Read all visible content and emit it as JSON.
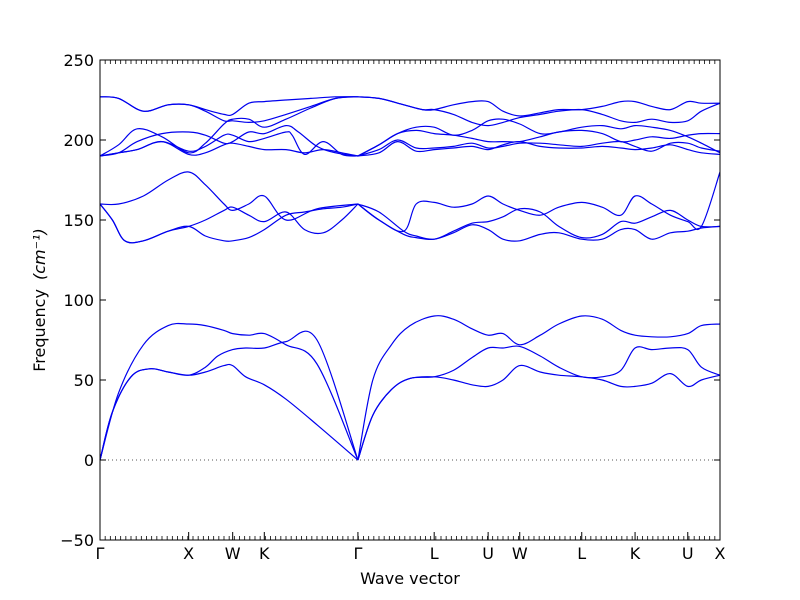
{
  "chart_data": {
    "type": "line",
    "title": "",
    "xlabel": "Wave vector",
    "ylabel": "Frequency",
    "ylabel_unit": "(cm⁻¹)",
    "ylim": [
      -50,
      250
    ],
    "yticks": [
      -50,
      0,
      50,
      100,
      150,
      200,
      250
    ],
    "xlim": [
      0,
      1
    ],
    "high_symmetry_points": [
      {
        "label": "Γ",
        "x": 0.0
      },
      {
        "label": "X",
        "x": 0.143
      },
      {
        "label": "W",
        "x": 0.214
      },
      {
        "label": "K",
        "x": 0.265
      },
      {
        "label": "Γ",
        "x": 0.416
      },
      {
        "label": "L",
        "x": 0.539
      },
      {
        "label": "U",
        "x": 0.626
      },
      {
        "label": "W",
        "x": 0.677
      },
      {
        "label": "L",
        "x": 0.777
      },
      {
        "label": "K",
        "x": 0.863
      },
      {
        "label": "U",
        "x": 0.948
      },
      {
        "label": "X",
        "x": 1.0
      }
    ],
    "minor_tick_count": 120,
    "zero_line": true,
    "grid": false,
    "line_color": "#0000ee",
    "series": [
      {
        "x": [
          0,
          0.02,
          0.05,
          0.08,
          0.11,
          0.143,
          0.17,
          0.2,
          0.214,
          0.235,
          0.265,
          0.3,
          0.35,
          0.416
        ],
        "values": [
          0,
          30,
          52,
          57,
          55,
          53,
          55,
          59,
          59,
          52,
          47,
          38,
          22,
          0
        ]
      },
      {
        "x": [
          0,
          0.02,
          0.05,
          0.08,
          0.11,
          0.143,
          0.17,
          0.19,
          0.214,
          0.235,
          0.265,
          0.3,
          0.35,
          0.416
        ],
        "values": [
          0,
          30,
          52,
          57,
          55,
          53,
          58,
          65,
          69,
          70,
          70,
          74,
          75,
          0
        ]
      },
      {
        "x": [
          0,
          0.03,
          0.07,
          0.11,
          0.143,
          0.17,
          0.2,
          0.214,
          0.24,
          0.265,
          0.3,
          0.35,
          0.416
        ],
        "values": [
          0,
          42,
          72,
          84,
          85,
          84,
          81,
          79,
          78,
          79,
          72,
          60,
          0
        ]
      },
      {
        "x": [
          0.416,
          0.44,
          0.47,
          0.5,
          0.539,
          0.57,
          0.6,
          0.626,
          0.65,
          0.677,
          0.71,
          0.74,
          0.777,
          0.81,
          0.84,
          0.863,
          0.89,
          0.92,
          0.948,
          0.97,
          1.0
        ],
        "values": [
          0,
          28,
          44,
          51,
          52,
          56,
          64,
          70,
          70,
          71,
          65,
          58,
          52,
          52,
          56,
          70,
          69,
          70,
          69,
          58,
          53
        ]
      },
      {
        "x": [
          0.416,
          0.44,
          0.47,
          0.5,
          0.539,
          0.57,
          0.6,
          0.626,
          0.65,
          0.677,
          0.71,
          0.74,
          0.777,
          0.81,
          0.84,
          0.863,
          0.89,
          0.92,
          0.948,
          0.97,
          1.0
        ],
        "values": [
          0,
          28,
          44,
          51,
          52,
          50,
          47,
          46,
          50,
          59,
          55,
          53,
          52,
          50,
          46,
          46,
          48,
          54,
          46,
          50,
          53
        ]
      },
      {
        "x": [
          0.416,
          0.44,
          0.47,
          0.5,
          0.539,
          0.57,
          0.6,
          0.626,
          0.65,
          0.677,
          0.71,
          0.74,
          0.777,
          0.81,
          0.84,
          0.863,
          0.89,
          0.92,
          0.948,
          0.97,
          1.0
        ],
        "values": [
          0,
          50,
          72,
          84,
          90,
          88,
          82,
          78,
          79,
          72,
          78,
          85,
          90,
          88,
          81,
          78,
          77,
          77,
          79,
          84,
          85
        ]
      },
      {
        "x": [
          0,
          0.03,
          0.07,
          0.11,
          0.143,
          0.17,
          0.2,
          0.214,
          0.24,
          0.265,
          0.3,
          0.35,
          0.416
        ],
        "values": [
          160,
          160,
          165,
          175,
          180,
          172,
          160,
          156,
          160,
          165,
          150,
          157,
          160
        ]
      },
      {
        "x": [
          0,
          0.02,
          0.04,
          0.07,
          0.11,
          0.143,
          0.17,
          0.2,
          0.214,
          0.24,
          0.265,
          0.3,
          0.33,
          0.36,
          0.39,
          0.416
        ],
        "values": [
          160,
          150,
          137,
          137,
          143,
          146,
          150,
          156,
          158,
          153,
          149,
          155,
          144,
          142,
          150,
          160
        ]
      },
      {
        "x": [
          0,
          0.02,
          0.04,
          0.07,
          0.11,
          0.143,
          0.17,
          0.2,
          0.214,
          0.24,
          0.265,
          0.3,
          0.33,
          0.36,
          0.39,
          0.416
        ],
        "values": [
          160,
          150,
          137,
          137,
          143,
          146,
          140,
          137,
          137,
          139,
          144,
          153,
          155,
          157,
          158,
          160
        ]
      },
      {
        "x": [
          0.416,
          0.45,
          0.49,
          0.51,
          0.539,
          0.57,
          0.6,
          0.626,
          0.65,
          0.677,
          0.71,
          0.74,
          0.777,
          0.81,
          0.84,
          0.863,
          0.89,
          0.92,
          0.948,
          0.97,
          1.0
        ],
        "values": [
          160,
          150,
          143,
          160,
          161,
          158,
          160,
          165,
          160,
          156,
          153,
          158,
          161,
          158,
          153,
          165,
          160,
          153,
          149,
          146,
          180
        ]
      },
      {
        "x": [
          0.416,
          0.45,
          0.49,
          0.51,
          0.539,
          0.57,
          0.6,
          0.626,
          0.65,
          0.677,
          0.71,
          0.74,
          0.777,
          0.81,
          0.84,
          0.863,
          0.89,
          0.92,
          0.948,
          0.97,
          1.0
        ],
        "values": [
          160,
          155,
          143,
          140,
          138,
          143,
          148,
          149,
          152,
          157,
          155,
          146,
          139,
          141,
          149,
          148,
          152,
          156,
          150,
          146,
          146
        ]
      },
      {
        "x": [
          0.416,
          0.45,
          0.49,
          0.51,
          0.539,
          0.57,
          0.6,
          0.626,
          0.65,
          0.677,
          0.71,
          0.74,
          0.777,
          0.81,
          0.84,
          0.863,
          0.89,
          0.92,
          0.948,
          0.97,
          1.0
        ],
        "values": [
          160,
          150,
          141,
          139,
          138,
          142,
          147,
          144,
          138,
          137,
          141,
          142,
          138,
          138,
          144,
          144,
          138,
          142,
          143,
          145,
          146
        ]
      },
      {
        "x": [
          0,
          0.03,
          0.07,
          0.11,
          0.143,
          0.17,
          0.2,
          0.214,
          0.24,
          0.265,
          0.3,
          0.34,
          0.38,
          0.416
        ],
        "values": [
          227,
          226,
          218,
          222,
          222,
          219,
          216,
          216,
          223,
          224,
          225,
          226,
          227,
          227
        ]
      },
      {
        "x": [
          0,
          0.03,
          0.07,
          0.11,
          0.143,
          0.17,
          0.2,
          0.214,
          0.24,
          0.265,
          0.3,
          0.34,
          0.38,
          0.416
        ],
        "values": [
          227,
          226,
          218,
          222,
          222,
          218,
          212,
          212,
          211,
          212,
          216,
          221,
          226,
          227
        ]
      },
      {
        "x": [
          0,
          0.03,
          0.06,
          0.1,
          0.143,
          0.17,
          0.2,
          0.214,
          0.24,
          0.265,
          0.3,
          0.34,
          0.38,
          0.416
        ],
        "values": [
          190,
          197,
          207,
          202,
          192,
          198,
          210,
          213,
          213,
          208,
          213,
          220,
          226,
          227
        ]
      },
      {
        "x": [
          0,
          0.03,
          0.06,
          0.1,
          0.143,
          0.17,
          0.2,
          0.214,
          0.24,
          0.265,
          0.3,
          0.32,
          0.35,
          0.38,
          0.416
        ],
        "values": [
          190,
          192,
          199,
          204,
          205,
          203,
          198,
          199,
          205,
          204,
          209,
          205,
          196,
          192,
          190
        ]
      },
      {
        "x": [
          0,
          0.03,
          0.06,
          0.1,
          0.143,
          0.17,
          0.2,
          0.214,
          0.24,
          0.265,
          0.3,
          0.31,
          0.33,
          0.36,
          0.39,
          0.416
        ],
        "values": [
          190,
          192,
          194,
          199,
          193,
          196,
          203,
          203,
          199,
          201,
          205,
          203,
          191,
          199,
          191,
          190
        ]
      },
      {
        "x": [
          0,
          0.03,
          0.06,
          0.1,
          0.143,
          0.17,
          0.2,
          0.214,
          0.24,
          0.265,
          0.3,
          0.33,
          0.36,
          0.39,
          0.416
        ],
        "values": [
          190,
          192,
          194,
          199,
          191,
          192,
          197,
          198,
          196,
          194,
          194,
          192,
          194,
          192,
          190
        ]
      },
      {
        "x": [
          0.416,
          0.45,
          0.49,
          0.52,
          0.539,
          0.57,
          0.6,
          0.626,
          0.65,
          0.677,
          0.71,
          0.74,
          0.777,
          0.81,
          0.84,
          0.863,
          0.89,
          0.92,
          0.948,
          0.97,
          1.0
        ],
        "values": [
          227,
          226,
          222,
          219,
          219,
          222,
          224,
          224,
          218,
          215,
          217,
          219,
          219,
          221,
          224,
          224,
          221,
          219,
          224,
          223,
          223
        ]
      },
      {
        "x": [
          0.416,
          0.45,
          0.49,
          0.52,
          0.539,
          0.57,
          0.6,
          0.626,
          0.65,
          0.677,
          0.71,
          0.74,
          0.777,
          0.81,
          0.84,
          0.863,
          0.89,
          0.92,
          0.948,
          0.97,
          1.0
        ],
        "values": [
          227,
          226,
          222,
          219,
          219,
          216,
          211,
          209,
          211,
          214,
          216,
          218,
          219,
          216,
          212,
          211,
          213,
          211,
          212,
          218,
          223
        ]
      },
      {
        "x": [
          0.416,
          0.45,
          0.48,
          0.51,
          0.539,
          0.57,
          0.6,
          0.626,
          0.65,
          0.677,
          0.71,
          0.74,
          0.777,
          0.81,
          0.84,
          0.863,
          0.89,
          0.92,
          0.948,
          0.97,
          1.0
        ],
        "values": [
          190,
          197,
          204,
          208,
          208,
          203,
          206,
          212,
          213,
          210,
          204,
          205,
          208,
          209,
          207,
          209,
          208,
          206,
          202,
          198,
          192
        ]
      },
      {
        "x": [
          0.416,
          0.45,
          0.48,
          0.51,
          0.539,
          0.57,
          0.6,
          0.626,
          0.65,
          0.677,
          0.71,
          0.74,
          0.777,
          0.81,
          0.84,
          0.863,
          0.89,
          0.92,
          0.948,
          0.97,
          1.0
        ],
        "values": [
          190,
          197,
          204,
          206,
          204,
          203,
          201,
          199,
          199,
          199,
          202,
          205,
          206,
          204,
          199,
          200,
          202,
          201,
          203,
          204,
          204
        ]
      },
      {
        "x": [
          0.416,
          0.45,
          0.48,
          0.51,
          0.539,
          0.57,
          0.6,
          0.626,
          0.65,
          0.677,
          0.71,
          0.74,
          0.777,
          0.81,
          0.84,
          0.863,
          0.89,
          0.92,
          0.948,
          0.97,
          1.0
        ],
        "values": [
          190,
          194,
          200,
          195,
          195,
          196,
          198,
          195,
          196,
          198,
          198,
          197,
          196,
          198,
          199,
          196,
          193,
          198,
          198,
          195,
          193
        ]
      },
      {
        "x": [
          0.416,
          0.45,
          0.48,
          0.51,
          0.539,
          0.57,
          0.6,
          0.626,
          0.65,
          0.677,
          0.71,
          0.74,
          0.777,
          0.81,
          0.84,
          0.863,
          0.89,
          0.92,
          0.948,
          0.97,
          1.0
        ],
        "values": [
          190,
          192,
          199,
          193,
          194,
          195,
          196,
          194,
          197,
          199,
          196,
          195,
          195,
          196,
          195,
          194,
          195,
          197,
          194,
          192,
          191
        ]
      }
    ]
  }
}
